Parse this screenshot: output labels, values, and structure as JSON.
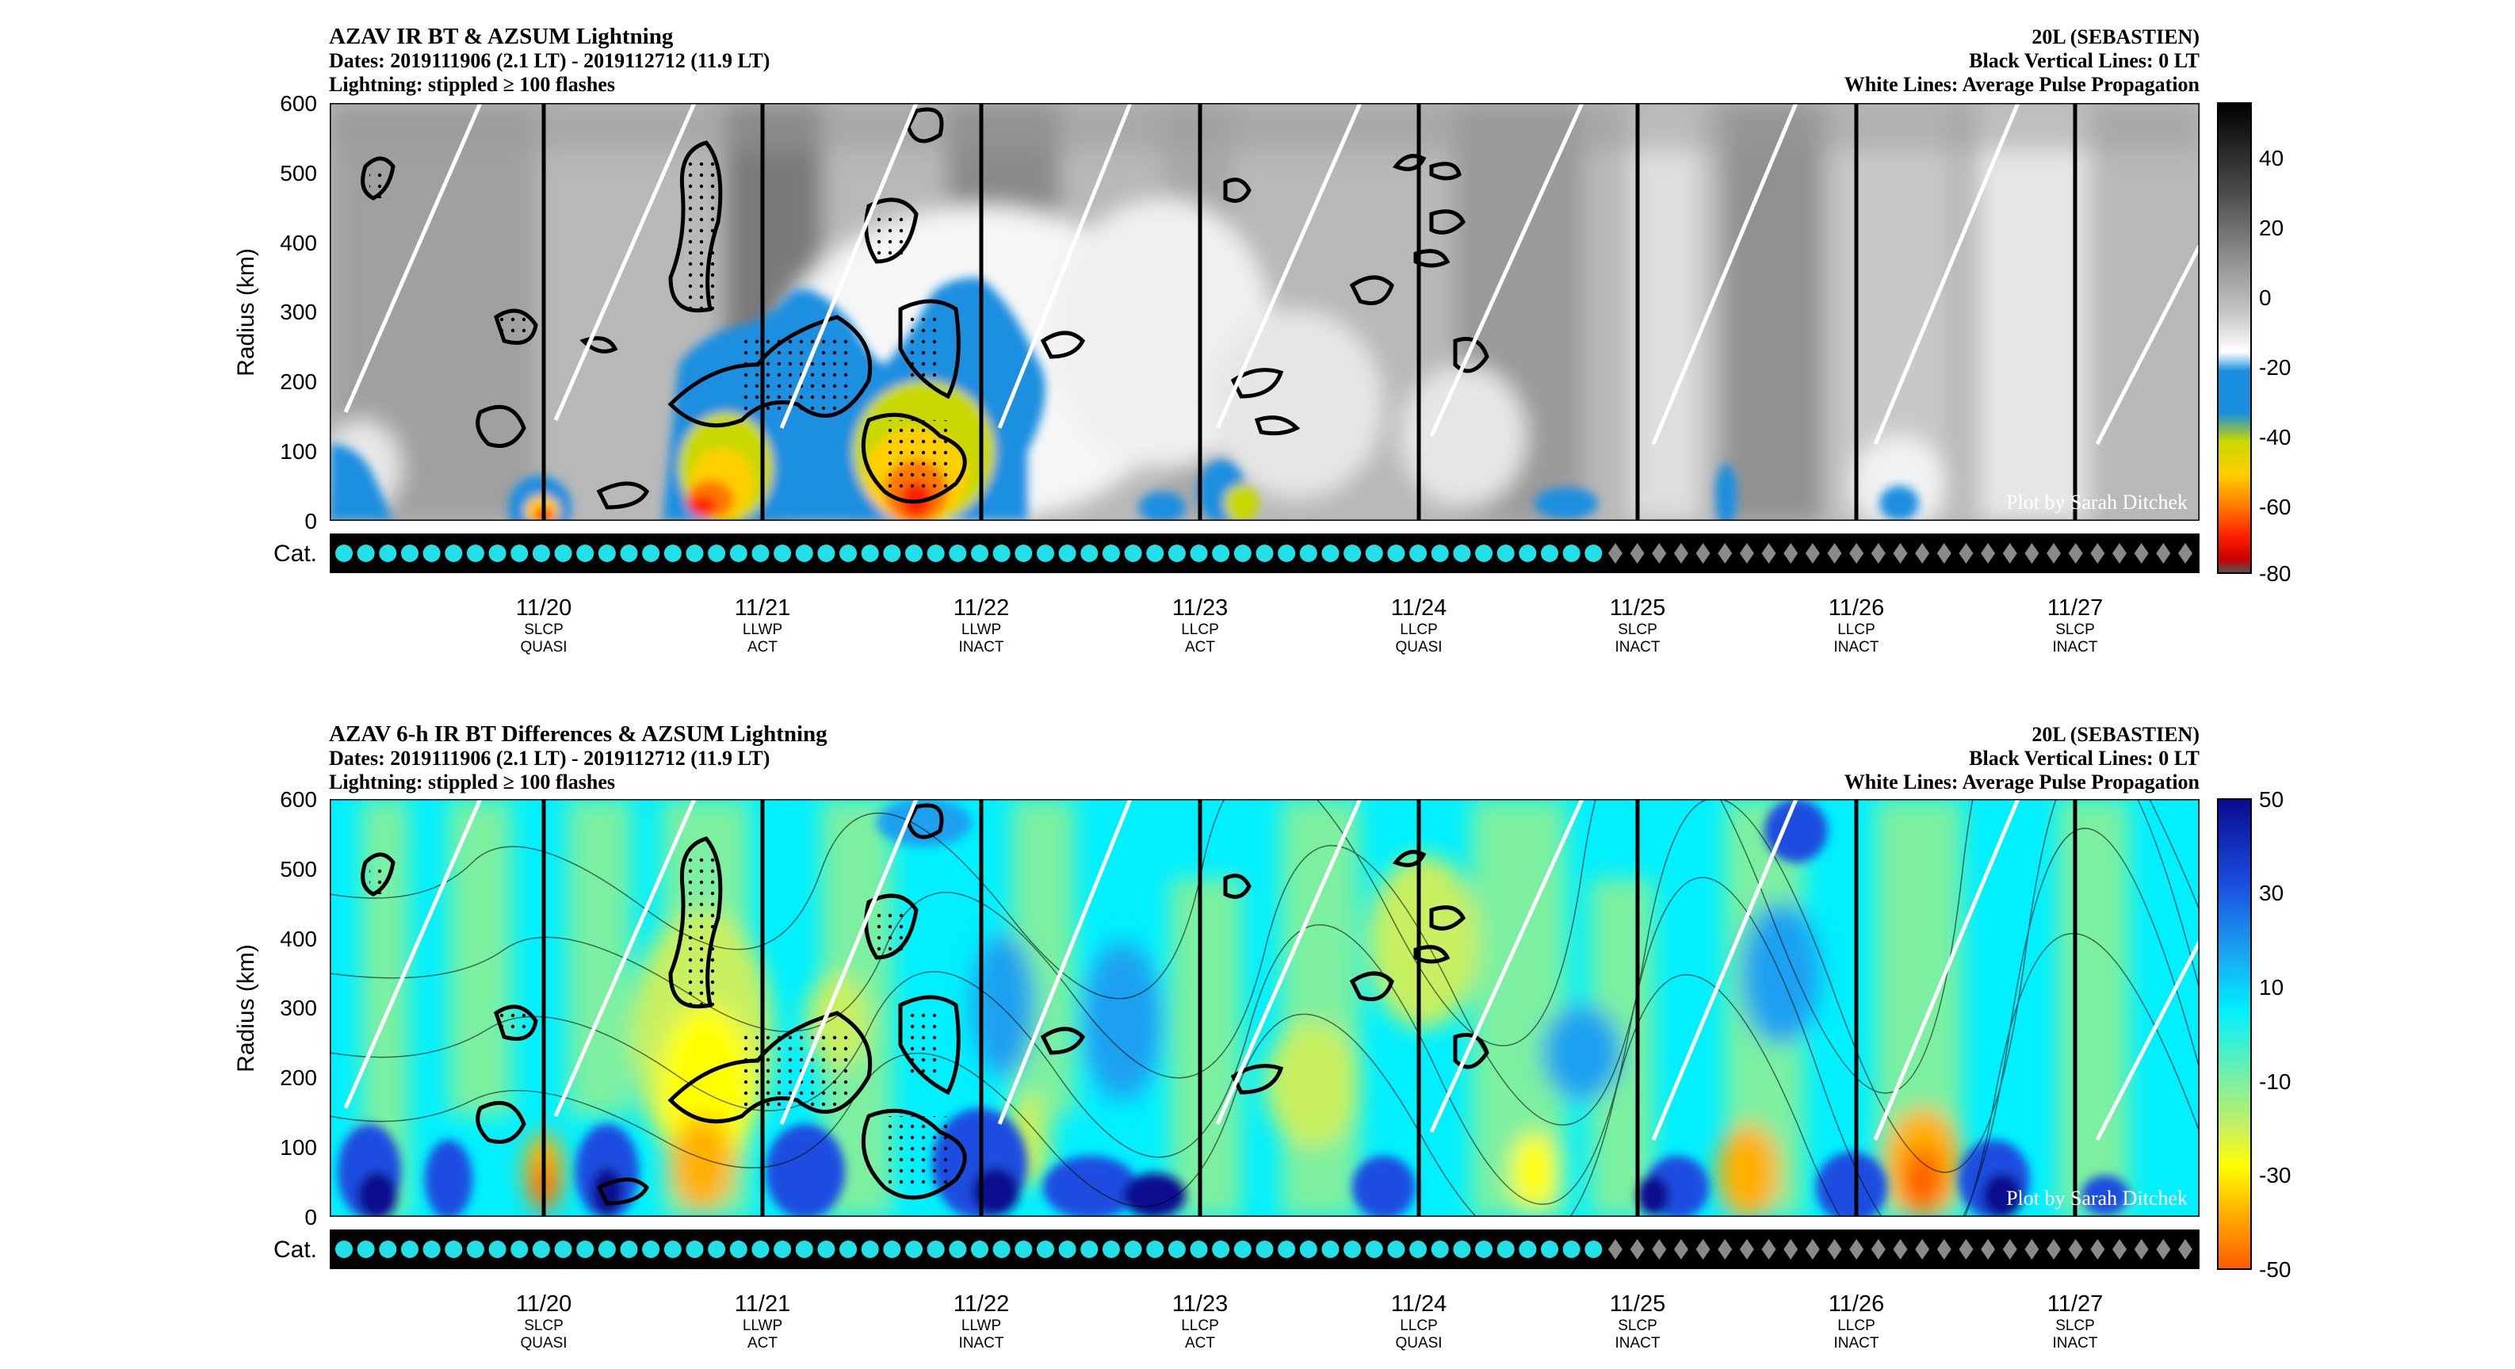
{
  "panels": [
    {
      "title": "AZAV IR BT & AZSUM Lightning",
      "dates": "Dates: 2019111906 (2.1 LT) - 2019112712 (11.9 LT)",
      "lightning": "Lightning: stippled ≥ 100 flashes",
      "storm": "20L (SEBASTIEN)",
      "black_lines": "Black Vertical Lines: 0 LT",
      "white_lines": "White Lines: Average Pulse Propagation",
      "credit": "Plot by Sarah Ditchek",
      "colorbar": {
        "ticks": [
          "40",
          "20",
          "0",
          "-20",
          "-40",
          "-60",
          "-80"
        ]
      }
    },
    {
      "title": "AZAV 6-h IR BT Differences & AZSUM Lightning",
      "dates": "Dates: 2019111906 (2.1 LT) - 2019112712 (11.9 LT)",
      "lightning": "Lightning: stippled ≥ 100 flashes",
      "storm": "20L (SEBASTIEN)",
      "black_lines": "Black Vertical Lines: 0 LT",
      "white_lines": "White Lines: Average Pulse Propagation",
      "credit": "Plot by Sarah Ditchek",
      "colorbar": {
        "ticks": [
          "50",
          "30",
          "10",
          "-10",
          "-30",
          "-50"
        ]
      }
    }
  ],
  "shared": {
    "ylabel": "Radius (km)",
    "cat_label": "Cat.",
    "y_ticks": [
      "600",
      "500",
      "400",
      "300",
      "200",
      "100",
      "0"
    ],
    "days": [
      {
        "date": "11/20",
        "l1": "SLCP",
        "l2": "QUASI"
      },
      {
        "date": "11/21",
        "l1": "LLWP",
        "l2": "ACT"
      },
      {
        "date": "11/22",
        "l1": "LLWP",
        "l2": "INACT"
      },
      {
        "date": "11/23",
        "l1": "LLCP",
        "l2": "ACT"
      },
      {
        "date": "11/24",
        "l1": "LLCP",
        "l2": "QUASI"
      },
      {
        "date": "11/25",
        "l1": "SLCP",
        "l2": "INACT"
      },
      {
        "date": "11/26",
        "l1": "LLCP",
        "l2": "INACT"
      },
      {
        "date": "11/27",
        "l1": "SLCP",
        "l2": "INACT"
      }
    ]
  },
  "chart_data": [
    {
      "type": "heatmap",
      "title": "AZAV IR BT & AZSUM Lightning",
      "ylabel": "Radius (km)",
      "ylim": [
        0,
        600
      ],
      "x_ticks": [
        "11/20",
        "11/21",
        "11/22",
        "11/23",
        "11/24",
        "11/25",
        "11/26",
        "11/27"
      ],
      "colorbar_range": [
        -80,
        50
      ],
      "colors": {
        "cold": "#1a8fe0",
        "warm": "#ffffff",
        "coldest": "#cc0000"
      },
      "category_markers": {
        "circles": 58,
        "diamonds": 27,
        "circle_color": "#22e0e8",
        "diamond_color": "#8a8a8a"
      }
    },
    {
      "type": "heatmap",
      "title": "AZAV 6-h IR BT Differences & AZSUM Lightning",
      "ylabel": "Radius (km)",
      "ylim": [
        0,
        600
      ],
      "x_ticks": [
        "11/20",
        "11/21",
        "11/22",
        "11/23",
        "11/24",
        "11/25",
        "11/26",
        "11/27"
      ],
      "colorbar_range": [
        -50,
        50
      ],
      "colors": {
        "cooling": "#ff5a00",
        "neutral": "#00f0ff",
        "warming": "#0a0a90"
      },
      "category_markers": {
        "circles": 58,
        "diamonds": 27,
        "circle_color": "#22e0e8",
        "diamond_color": "#8a8a8a"
      }
    }
  ]
}
